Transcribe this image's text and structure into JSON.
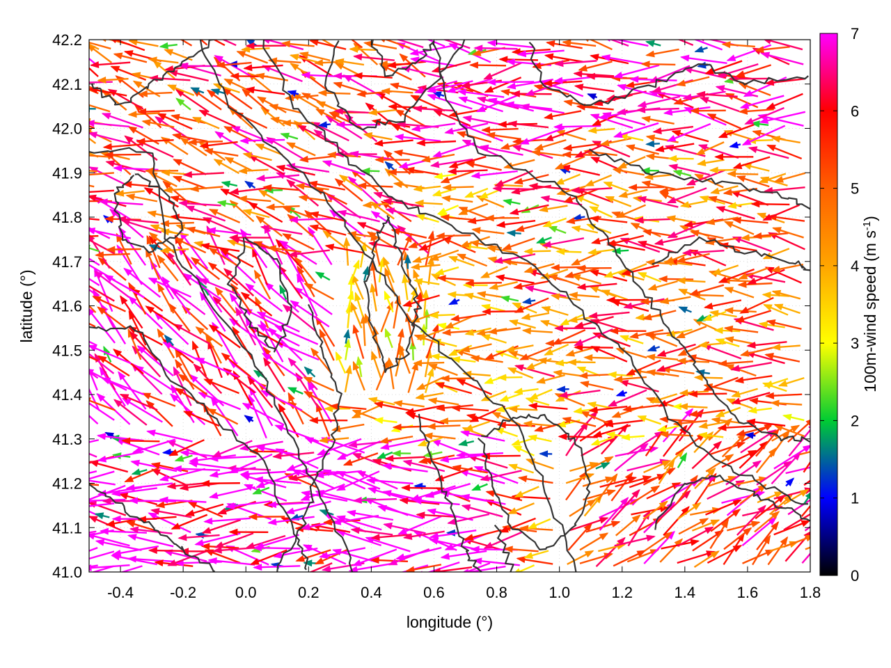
{
  "chart_data": {
    "type": "vector-field",
    "xlabel": "longitude (°)",
    "ylabel": "latitude (°)",
    "xlim": [
      -0.5,
      1.8
    ],
    "ylim": [
      41.0,
      42.2
    ],
    "xticks": [
      -0.4,
      -0.2,
      0.0,
      0.2,
      0.4,
      0.6,
      0.8,
      1.0,
      1.2,
      1.4,
      1.6,
      1.8
    ],
    "xtick_labels": [
      "-0.4",
      "-0.2",
      "0.0",
      "0.2",
      "0.4",
      "0.6",
      "0.8",
      "1.0",
      "1.2",
      "1.4",
      "1.6",
      "1.8"
    ],
    "yticks": [
      41.0,
      41.1,
      41.2,
      41.3,
      41.4,
      41.5,
      41.6,
      41.7,
      41.8,
      41.9,
      42.0,
      42.1,
      42.2
    ],
    "ytick_labels": [
      "41.0",
      "41.1",
      "41.2",
      "41.3",
      "41.4",
      "41.5",
      "41.6",
      "41.7",
      "41.8",
      "41.9",
      "42.0",
      "42.1",
      "42.2"
    ],
    "grid": true,
    "colorbar": {
      "label_main": "100m-wind speed (m s",
      "label_sup": "-1",
      "label_close": ")",
      "range": [
        0,
        7
      ],
      "ticks": [
        0,
        1,
        2,
        3,
        4,
        5,
        6,
        7
      ],
      "tick_labels": [
        "0",
        "1",
        "2",
        "3",
        "4",
        "5",
        "6",
        "7"
      ],
      "colors": [
        "#000000",
        "#0000ff",
        "#00cc33",
        "#ffff00",
        "#ffa500",
        "#ff6000",
        "#ff0000",
        "#ff00ff"
      ]
    },
    "contour_color": "#333333",
    "wind_regions": [
      {
        "region": "north-west",
        "lon": [
          -0.5,
          0.6
        ],
        "lat": [
          41.7,
          42.2
        ],
        "speed_ms": 5.5,
        "direction": "from east-south-east"
      },
      {
        "region": "west",
        "lon": [
          -0.5,
          0.3
        ],
        "lat": [
          41.3,
          41.7
        ],
        "speed_ms": 6.5,
        "direction": "from south-east"
      },
      {
        "region": "south-west",
        "lon": [
          -0.5,
          0.9
        ],
        "lat": [
          41.0,
          41.3
        ],
        "speed_ms": 7,
        "direction": "from east"
      },
      {
        "region": "centre",
        "lon": [
          0.3,
          0.6
        ],
        "lat": [
          41.4,
          41.8
        ],
        "speed_ms": 4,
        "direction": "from south"
      },
      {
        "region": "east",
        "lon": [
          0.9,
          1.8
        ],
        "lat": [
          41.4,
          42.0
        ],
        "speed_ms": 5,
        "direction": "from east"
      },
      {
        "region": "south-east",
        "lon": [
          1.0,
          1.8
        ],
        "lat": [
          41.0,
          41.3
        ],
        "speed_ms": 5.5,
        "direction": "from south-west"
      },
      {
        "region": "north-east",
        "lon": [
          0.6,
          1.8
        ],
        "lat": [
          41.9,
          42.2
        ],
        "speed_ms": 6.5,
        "direction": "from east"
      }
    ]
  }
}
